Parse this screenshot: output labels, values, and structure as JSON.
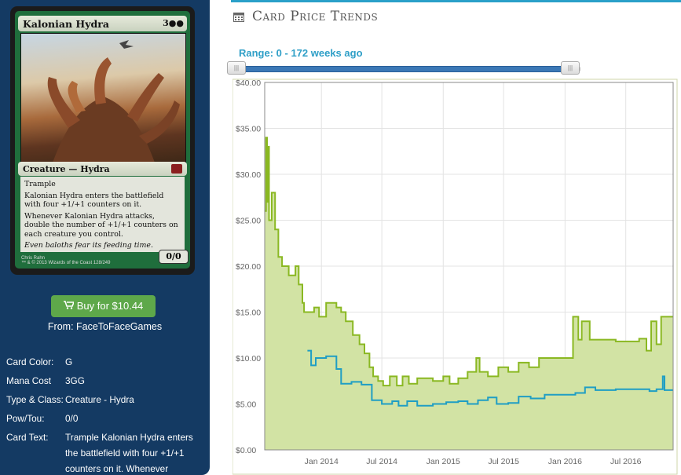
{
  "card": {
    "name": "Kalonian Hydra",
    "cost_symbols": "3●●",
    "type_line": "Creature — Hydra",
    "rules": [
      "Trample",
      "Kalonian Hydra enters the battlefield with four +1/+1 counters on it.",
      "Whenever Kalonian Hydra attacks, double the number of +1/+1 counters on each creature you control."
    ],
    "flavor": "Even baloths fear its feeding time.",
    "pt": "0/0",
    "artist": "Chris Rahn",
    "copyright": "™ & © 2013 Wizards of the Coast 128/249"
  },
  "buy": {
    "label": "Buy for $10.44",
    "from": "From: FaceToFaceGames",
    "icon": "cart-icon"
  },
  "info": [
    {
      "key": "Card Color:",
      "value": "G"
    },
    {
      "key": "Mana Cost",
      "value": "3GG"
    },
    {
      "key": "Type & Class:",
      "value": "Creature - Hydra"
    },
    {
      "key": "Pow/Tou:",
      "value": "0/0"
    },
    {
      "key": "Card Text:",
      "value": "Trample Kalonian Hydra enters the battlefield with four +1/+1 counters on it. Whenever"
    }
  ],
  "header": {
    "title": "Card Price Trends",
    "icon": "calendar-icon"
  },
  "slider": {
    "label": "Range: 0 - 172 weeks ago",
    "min_handle": "|||",
    "max_handle": "|||"
  },
  "colors": {
    "panel": "#143a63",
    "accent": "#2aa0c9",
    "green_line": "#8ab822",
    "green_fill": "#d2e3a4",
    "blue_line": "#1f9ec4",
    "buy": "#5ea84a"
  },
  "chart_data": {
    "type": "area",
    "x_range": [
      "2013-07-15",
      "2016-11-20"
    ],
    "ylim": [
      0,
      40
    ],
    "y_ticks": [
      "$0.00",
      "$5.00",
      "$10.00",
      "$15.00",
      "$20.00",
      "$25.00",
      "$30.00",
      "$35.00",
      "$40.00"
    ],
    "x_ticks": [
      {
        "date": "2014-01-01",
        "label": "Jan 2014"
      },
      {
        "date": "2014-07-01",
        "label": "Jul 2014"
      },
      {
        "date": "2015-01-01",
        "label": "Jan 2015"
      },
      {
        "date": "2015-07-01",
        "label": "Jul 2015"
      },
      {
        "date": "2016-01-01",
        "label": "Jan 2016"
      },
      {
        "date": "2016-07-01",
        "label": "Jul 2016"
      }
    ],
    "grid": true,
    "series": [
      {
        "points": [
          [
            "2013-07-15",
            26
          ],
          [
            "2013-07-19",
            34
          ],
          [
            "2013-07-22",
            27
          ],
          [
            "2013-07-25",
            33
          ],
          [
            "2013-07-28",
            25
          ],
          [
            "2013-08-05",
            28
          ],
          [
            "2013-08-15",
            24
          ],
          [
            "2013-08-25",
            21
          ],
          [
            "2013-09-05",
            20
          ],
          [
            "2013-09-25",
            19
          ],
          [
            "2013-10-15",
            20
          ],
          [
            "2013-10-25",
            18
          ],
          [
            "2013-11-05",
            16
          ],
          [
            "2013-11-10",
            15
          ],
          [
            "2013-12-10",
            15.5
          ],
          [
            "2013-12-25",
            14.5
          ],
          [
            "2014-01-15",
            16
          ],
          [
            "2014-02-15",
            15.5
          ],
          [
            "2014-03-01",
            15
          ],
          [
            "2014-03-15",
            14
          ],
          [
            "2014-04-05",
            12.5
          ],
          [
            "2014-04-25",
            11.5
          ],
          [
            "2014-05-10",
            10.5
          ],
          [
            "2014-05-25",
            9
          ],
          [
            "2014-06-05",
            8
          ],
          [
            "2014-06-20",
            7.5
          ],
          [
            "2014-07-05",
            7
          ],
          [
            "2014-07-25",
            8
          ],
          [
            "2014-08-15",
            7
          ],
          [
            "2014-09-01",
            8
          ],
          [
            "2014-09-20",
            7.2
          ],
          [
            "2014-10-15",
            7.8
          ],
          [
            "2014-12-01",
            7.5
          ],
          [
            "2015-01-01",
            8
          ],
          [
            "2015-01-20",
            7.2
          ],
          [
            "2015-02-15",
            7.8
          ],
          [
            "2015-03-15",
            8.5
          ],
          [
            "2015-04-10",
            10
          ],
          [
            "2015-04-20",
            8.5
          ],
          [
            "2015-05-15",
            8
          ],
          [
            "2015-06-15",
            9
          ],
          [
            "2015-07-15",
            8.5
          ],
          [
            "2015-08-15",
            9.5
          ],
          [
            "2015-09-15",
            9
          ],
          [
            "2015-10-15",
            10
          ],
          [
            "2015-11-20",
            10
          ],
          [
            "2016-01-15",
            10
          ],
          [
            "2016-01-25",
            14.5
          ],
          [
            "2016-02-10",
            12
          ],
          [
            "2016-02-20",
            14
          ],
          [
            "2016-03-15",
            12
          ],
          [
            "2016-05-01",
            12
          ],
          [
            "2016-06-01",
            11.8
          ],
          [
            "2016-08-10",
            12.1
          ],
          [
            "2016-09-01",
            10.8
          ],
          [
            "2016-09-15",
            14
          ],
          [
            "2016-10-01",
            11.5
          ],
          [
            "2016-10-15",
            14.5
          ],
          [
            "2016-11-20",
            14.5
          ]
        ]
      },
      {
        "points": [
          [
            "2013-11-20",
            10.8
          ],
          [
            "2013-12-01",
            9.2
          ],
          [
            "2013-12-15",
            10
          ],
          [
            "2014-01-15",
            10.2
          ],
          [
            "2014-02-15",
            8.8
          ],
          [
            "2014-03-01",
            7.2
          ],
          [
            "2014-04-01",
            7.4
          ],
          [
            "2014-05-01",
            7.1
          ],
          [
            "2014-06-01",
            5.4
          ],
          [
            "2014-07-01",
            5
          ],
          [
            "2014-08-01",
            5.3
          ],
          [
            "2014-08-20",
            4.8
          ],
          [
            "2014-09-15",
            5.3
          ],
          [
            "2014-10-15",
            4.8
          ],
          [
            "2014-12-01",
            5
          ],
          [
            "2015-01-10",
            5.2
          ],
          [
            "2015-02-15",
            5.3
          ],
          [
            "2015-03-15",
            5
          ],
          [
            "2015-04-15",
            5.4
          ],
          [
            "2015-05-15",
            5.7
          ],
          [
            "2015-06-10",
            5
          ],
          [
            "2015-07-15",
            5.1
          ],
          [
            "2015-08-15",
            5.8
          ],
          [
            "2015-09-20",
            5.6
          ],
          [
            "2015-11-01",
            6
          ],
          [
            "2015-12-15",
            6
          ],
          [
            "2016-02-01",
            6.2
          ],
          [
            "2016-03-01",
            6.8
          ],
          [
            "2016-04-01",
            6.5
          ],
          [
            "2016-06-01",
            6.6
          ],
          [
            "2016-08-01",
            6.6
          ],
          [
            "2016-09-10",
            6.4
          ],
          [
            "2016-10-01",
            6.6
          ],
          [
            "2016-10-20",
            8
          ],
          [
            "2016-10-25",
            6.5
          ],
          [
            "2016-11-20",
            6.5
          ]
        ]
      }
    ]
  }
}
